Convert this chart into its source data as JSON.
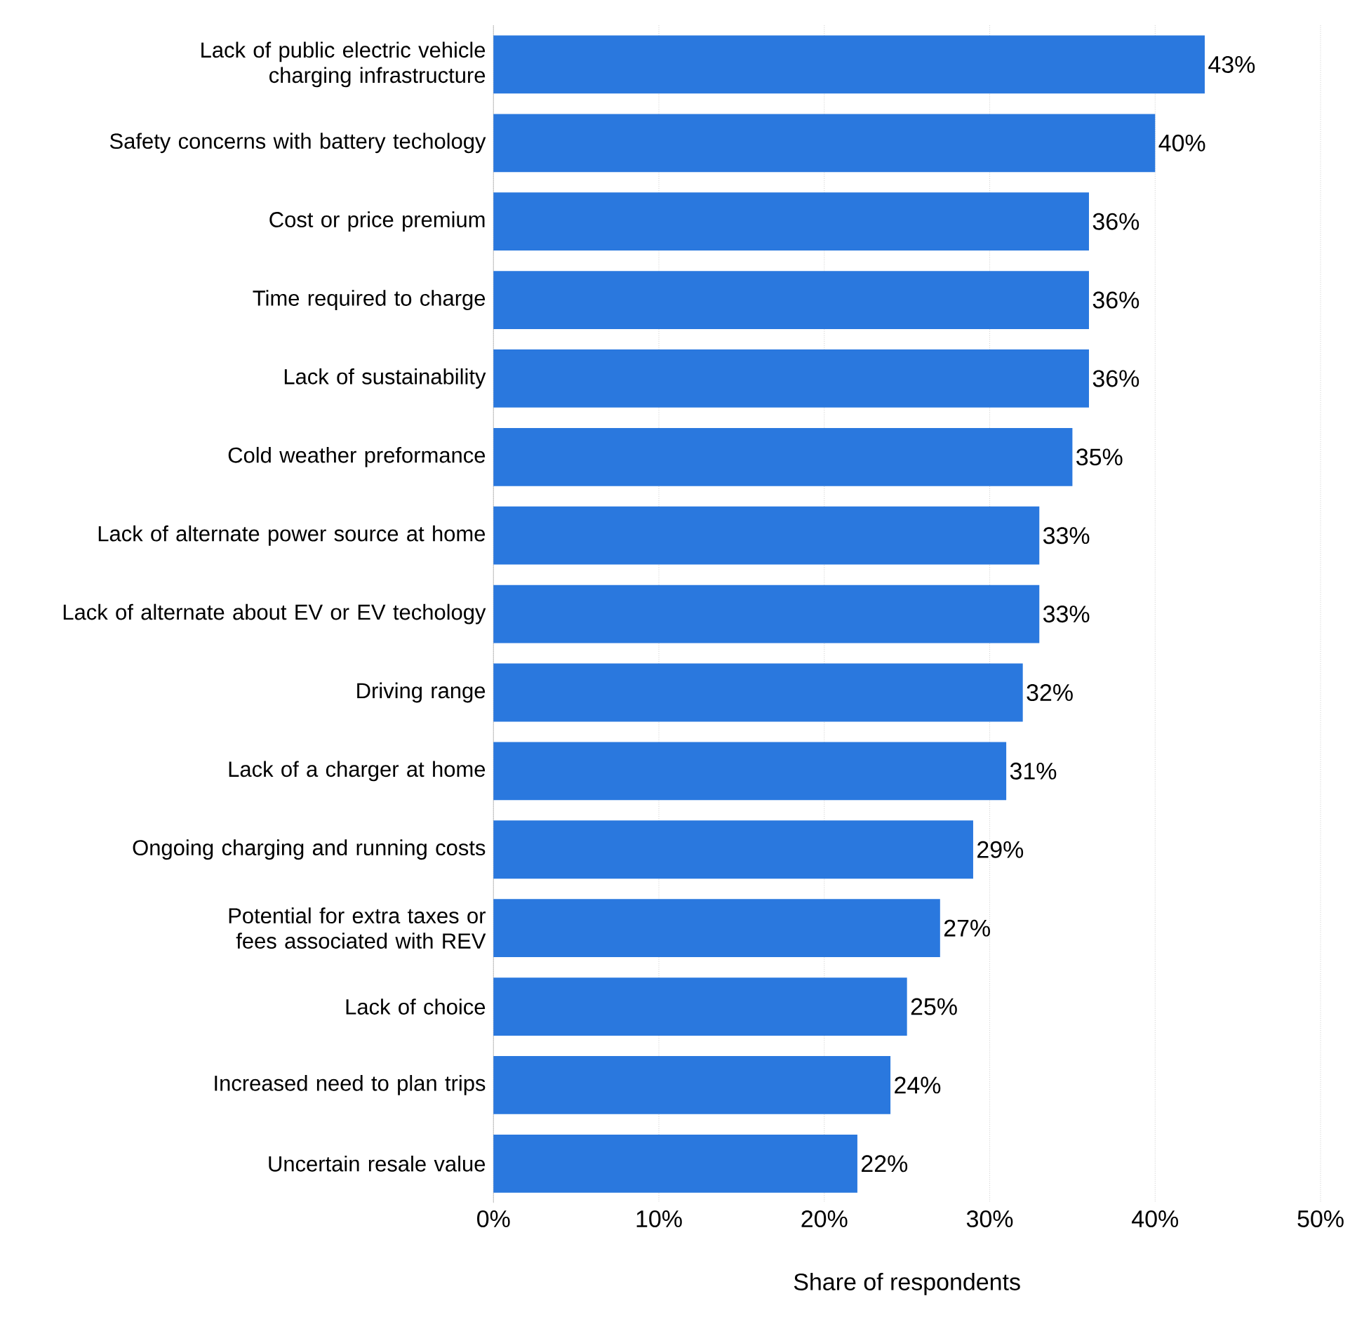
{
  "chart_data": {
    "type": "bar",
    "orientation": "horizontal",
    "xlabel": "Share of respondents",
    "categories": [
      "Lack of public electric vehicle charging infrastructure",
      "Safety concerns with battery techology",
      "Cost or price premium",
      "Time required to charge",
      "Lack of sustainability",
      "Cold weather preformance",
      "Lack of alternate power source at home",
      "Lack of alternate about EV or EV techology",
      "Driving range",
      "Lack of a charger at home",
      "Ongoing charging and running costs",
      "Potential for extra taxes or fees associated with REV",
      "Lack of choice",
      "Increased need to plan trips",
      "Uncertain resale value"
    ],
    "values": [
      43,
      40,
      36,
      36,
      36,
      35,
      33,
      33,
      32,
      31,
      29,
      27,
      25,
      24,
      22
    ],
    "value_labels": [
      "43%",
      "40%",
      "36%",
      "36%",
      "36%",
      "35%",
      "33%",
      "33%",
      "32%",
      "31%",
      "29%",
      "27%",
      "25%",
      "24%",
      "22%"
    ],
    "color": "#2a78de",
    "xlim": [
      0,
      50
    ],
    "xticks": [
      {
        "value": 0,
        "label": "0%"
      },
      {
        "value": 10,
        "label": "10%"
      },
      {
        "value": 20,
        "label": "20%"
      },
      {
        "value": 30,
        "label": "30%"
      },
      {
        "value": 40,
        "label": "40%"
      },
      {
        "value": 50,
        "label": "50%"
      }
    ],
    "grid": "x"
  }
}
